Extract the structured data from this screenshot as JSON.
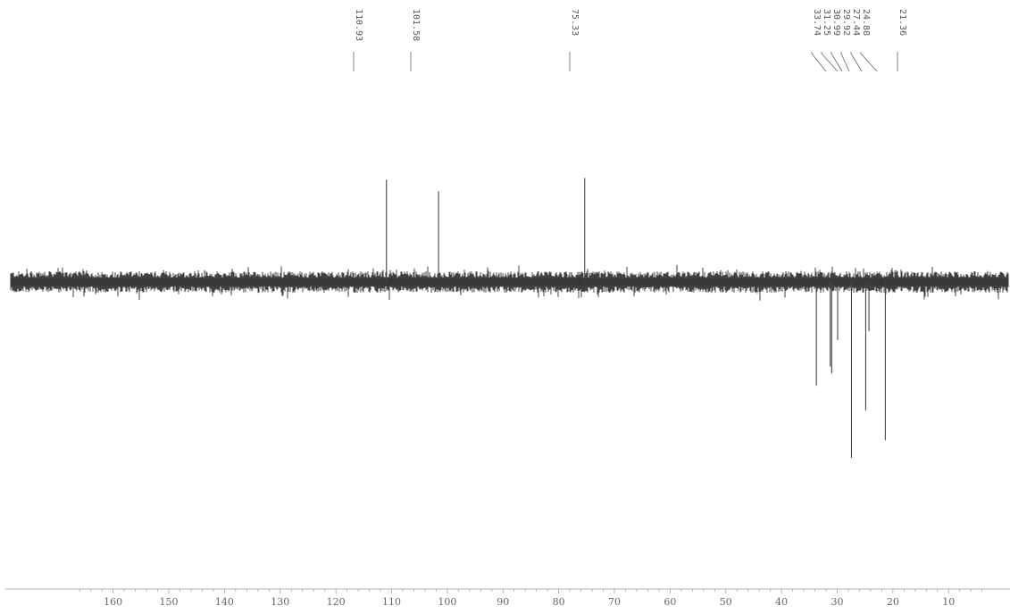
{
  "chart_data": {
    "type": "line",
    "title": "",
    "xlabel": "",
    "ylabel": "",
    "x_axis_reversed": true,
    "xlim": [
      166,
      3
    ],
    "xticks": [
      160,
      150,
      140,
      130,
      120,
      110,
      100,
      90,
      80,
      70,
      60,
      50,
      40,
      30,
      20,
      10
    ],
    "grid": false,
    "peak_labels": [
      "110.93",
      "101.58",
      "75.33",
      "33.74",
      "31.25",
      "30.99",
      "29.92",
      "27.44",
      "24.88",
      "21.36"
    ],
    "peaks": [
      {
        "x": 110.93,
        "direction": "up",
        "height": 0.62
      },
      {
        "x": 101.58,
        "direction": "up",
        "height": 0.55
      },
      {
        "x": 75.33,
        "direction": "up",
        "height": 0.63
      },
      {
        "x": 33.74,
        "direction": "down",
        "height": 0.59
      },
      {
        "x": 31.25,
        "direction": "down",
        "height": 0.48
      },
      {
        "x": 30.99,
        "direction": "down",
        "height": 0.52
      },
      {
        "x": 29.92,
        "direction": "down",
        "height": 0.33
      },
      {
        "x": 27.44,
        "direction": "down",
        "height": 1.0
      },
      {
        "x": 24.88,
        "direction": "down",
        "height": 0.73
      },
      {
        "x": 24.3,
        "direction": "down",
        "height": 0.28
      },
      {
        "x": 21.36,
        "direction": "down",
        "height": 0.9
      }
    ]
  }
}
